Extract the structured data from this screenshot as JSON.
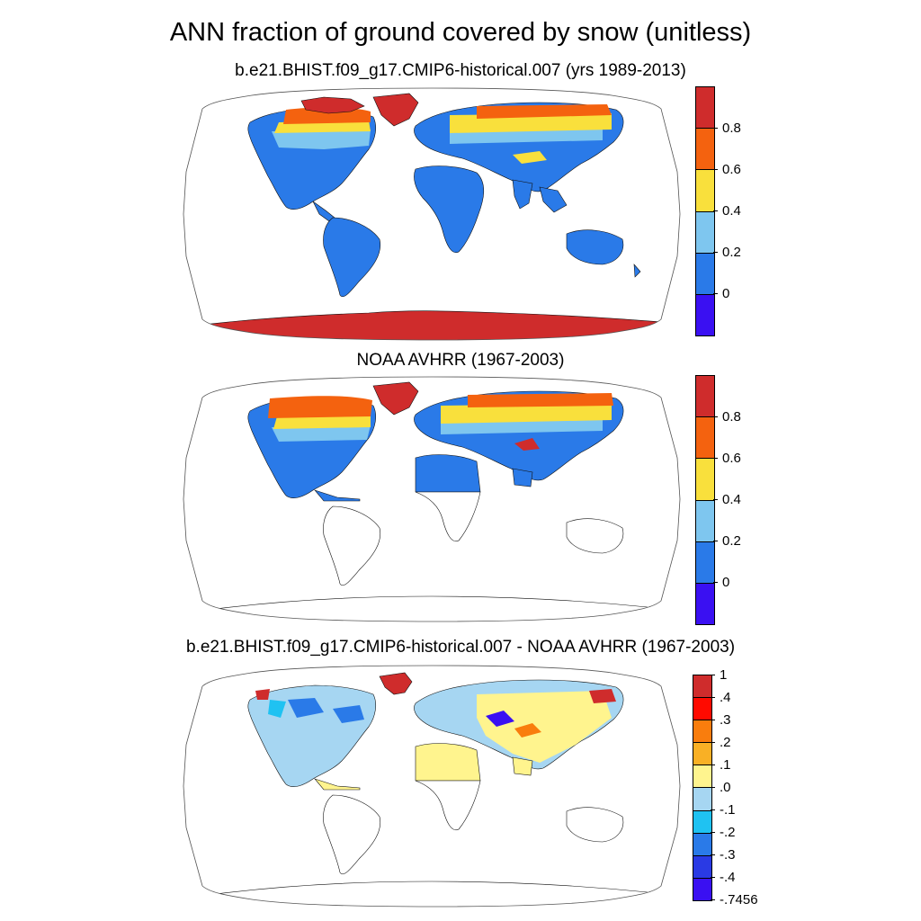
{
  "title": "ANN fraction of ground covered by snow (unitless)",
  "panels": [
    {
      "subtitle": "b.e21.BHIST.f09_g17.CMIP6-historical.007 (yrs 1989-2013)",
      "colorbar": {
        "colors": [
          "#cf2c2c",
          "#f4620f",
          "#f9e03c",
          "#7ec6ef",
          "#2a7ae8",
          "#3a10f2"
        ],
        "labels": [
          "0.8",
          "0.6",
          "0.4",
          "0.2",
          "0"
        ]
      }
    },
    {
      "subtitle": "NOAA AVHRR (1967-2003)",
      "colorbar": {
        "colors": [
          "#cf2c2c",
          "#f4620f",
          "#f9e03c",
          "#7ec6ef",
          "#2a7ae8",
          "#3a10f2"
        ],
        "labels": [
          "0.8",
          "0.6",
          "0.4",
          "0.2",
          "0"
        ]
      }
    },
    {
      "subtitle": "b.e21.BHIST.f09_g17.CMIP6-historical.007 - NOAA AVHRR (1967-2003)",
      "colorbar": {
        "colors": [
          "#cf2c2c",
          "#ff0a00",
          "#f97d0d",
          "#f9b025",
          "#fff48e",
          "#a6d6f2",
          "#1fc2f2",
          "#2a7ae8",
          "#2a3ae4",
          "#3a10f2"
        ],
        "labels": [
          "1",
          ".4",
          ".3",
          ".2",
          ".1",
          ".0",
          "-.1",
          "-.2",
          "-.3",
          "-.4",
          "-.7456"
        ]
      }
    }
  ]
}
